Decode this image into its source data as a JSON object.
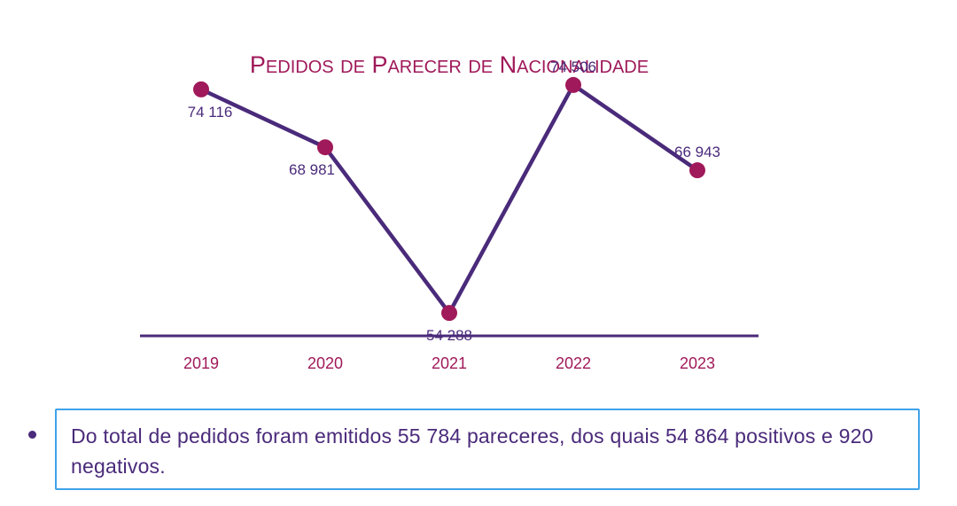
{
  "chart_data": {
    "type": "line",
    "title": "Pedidos de Parecer de Nacionalidade",
    "categories": [
      "2019",
      "2020",
      "2021",
      "2022",
      "2023"
    ],
    "series": [
      {
        "values": [
          74116,
          68981,
          54288,
          74506,
          66943
        ]
      }
    ],
    "data_labels": [
      "74 116",
      "68 981",
      "54 288",
      "74 506",
      "66 943"
    ],
    "ylim": [
      40000,
      80000
    ],
    "grid": false,
    "legend": "none",
    "colors": {
      "line": "#4a2a7a",
      "marker": "#a0195a",
      "axis": "#4a2a7a",
      "title": "#a0195a",
      "tick": "#a0195a"
    }
  },
  "note": {
    "text": "Do total de pedidos foram emitidos 55 784 pareceres, dos quais 54 864 positivos e 920 negativos."
  }
}
